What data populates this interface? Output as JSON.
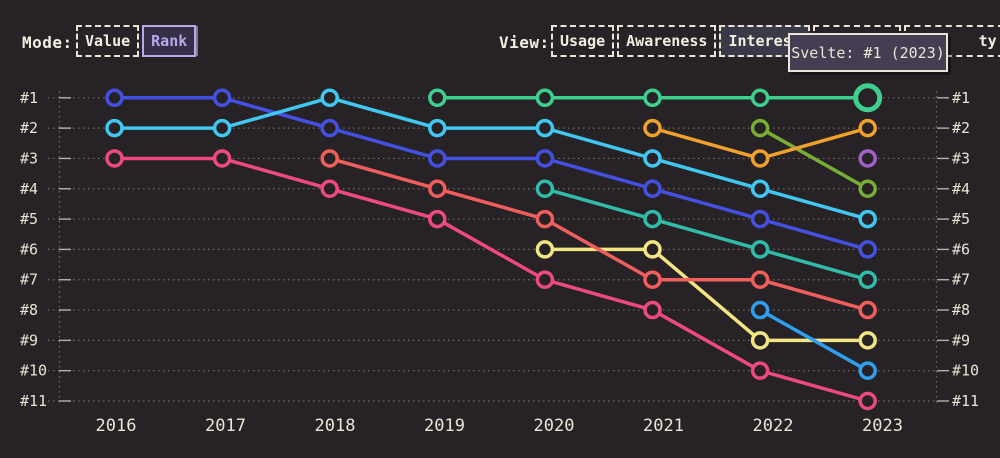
{
  "page": {
    "background": "#272225",
    "text_color": "#ece4d6",
    "accent": "#b7a9ea"
  },
  "controls": {
    "mode": {
      "label": "Mode:",
      "buttons": [
        {
          "label": "Value",
          "selected": false
        },
        {
          "label": "Rank",
          "selected": true
        }
      ]
    },
    "view": {
      "label": "View:",
      "buttons": [
        {
          "label": "Usage",
          "selected": false
        },
        {
          "label": "Awareness",
          "selected": false
        },
        {
          "label": "Interest",
          "selected": true
        },
        {
          "label": "",
          "selected": false,
          "obscured": true
        },
        {
          "label": "ty",
          "selected": false,
          "obscured": true
        }
      ]
    }
  },
  "tooltip": {
    "text": "Svelte: #1 (2023)",
    "background": "#453e52",
    "border": "#ece4d6"
  },
  "chart_data": {
    "type": "line",
    "subtype": "bump-rank-chart",
    "x": [
      2016,
      2017,
      2018,
      2019,
      2020,
      2021,
      2022,
      2023
    ],
    "x_tick_labels": [
      "2016",
      "2017",
      "2018",
      "2019",
      "2020",
      "2021",
      "2022",
      "2023"
    ],
    "y_tick_labels_left": [
      "#1",
      "#2",
      "#3",
      "#4",
      "#5",
      "#6",
      "#7",
      "#8",
      "#9",
      "#10",
      "#11"
    ],
    "y_tick_labels_right": [
      "#1",
      "#2",
      "#3",
      "#4",
      "#5",
      "#6",
      "#7",
      "#8",
      "#9",
      "#10",
      "#11"
    ],
    "y_axis_inverted": true,
    "ylim": [
      1,
      11
    ],
    "grid": "dotted-horizontal",
    "legend": "none",
    "grid_color": "#8a847d",
    "series": [
      {
        "name": "pink-series",
        "color": "#ee4a80",
        "points": [
          [
            2016,
            3
          ],
          [
            2017,
            3
          ],
          [
            2018,
            4
          ],
          [
            2019,
            5
          ],
          [
            2020,
            7
          ],
          [
            2021,
            8
          ],
          [
            2022,
            10
          ],
          [
            2023,
            11
          ]
        ]
      },
      {
        "name": "royal-blue-series",
        "color": "#4450e2",
        "points": [
          [
            2016,
            1
          ],
          [
            2017,
            1
          ],
          [
            2018,
            2
          ],
          [
            2019,
            3
          ],
          [
            2020,
            3
          ],
          [
            2021,
            4
          ],
          [
            2022,
            5
          ],
          [
            2023,
            6
          ]
        ]
      },
      {
        "name": "cyan-series",
        "color": "#41c7f0",
        "points": [
          [
            2016,
            2
          ],
          [
            2017,
            2
          ],
          [
            2018,
            1
          ],
          [
            2019,
            2
          ],
          [
            2020,
            2
          ],
          [
            2021,
            3
          ],
          [
            2022,
            4
          ],
          [
            2023,
            5
          ]
        ]
      },
      {
        "name": "teal-series",
        "color": "#30bca8",
        "points": [
          [
            2020,
            4
          ],
          [
            2021,
            5
          ],
          [
            2022,
            6
          ],
          [
            2023,
            7
          ]
        ]
      },
      {
        "name": "yellow-series",
        "color": "#f3e583",
        "points": [
          [
            2020,
            6
          ],
          [
            2021,
            6
          ],
          [
            2022,
            9
          ],
          [
            2023,
            9
          ]
        ]
      },
      {
        "name": "salmon-series",
        "color": "#f15e5e",
        "points": [
          [
            2018,
            3
          ],
          [
            2019,
            4
          ],
          [
            2020,
            5
          ],
          [
            2021,
            7
          ],
          [
            2022,
            7
          ],
          [
            2023,
            8
          ]
        ]
      },
      {
        "name": "light-blue-series",
        "color": "#2f9ff0",
        "points": [
          [
            2022,
            8
          ],
          [
            2023,
            10
          ]
        ]
      },
      {
        "name": "olive-green-series",
        "color": "#78ad36",
        "points": [
          [
            2022,
            2
          ],
          [
            2023,
            4
          ]
        ]
      },
      {
        "name": "orange-series",
        "color": "#f0a02c",
        "points": [
          [
            2021,
            2
          ],
          [
            2022,
            3
          ],
          [
            2023,
            2
          ]
        ]
      },
      {
        "name": "purple-series",
        "color": "#a35fc9",
        "points": [
          [
            2023,
            3
          ]
        ]
      },
      {
        "name": "green-series",
        "color": "#3ecf8e",
        "points": [
          [
            2019,
            1
          ],
          [
            2020,
            1
          ],
          [
            2021,
            1
          ],
          [
            2022,
            1
          ],
          [
            2023,
            1
          ]
        ],
        "highlight_last_point": true
      }
    ],
    "highlighted_point": {
      "series": "green-series",
      "year": 2023,
      "rank": 1,
      "tooltip": "Svelte: #1 (2023)"
    }
  }
}
